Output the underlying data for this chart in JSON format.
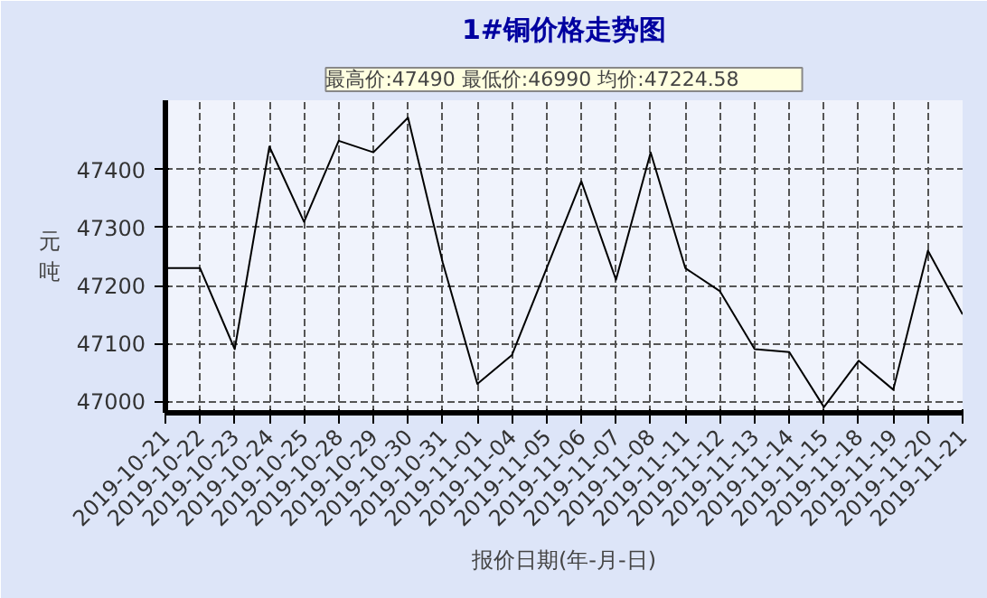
{
  "chart_data": {
    "type": "line",
    "title": "1#铜价格走势图",
    "xlabel": "报价日期(年-月-日)",
    "ylabel": "元吨",
    "categories": [
      "2019-10-21",
      "2019-10-22",
      "2019-10-23",
      "2019-10-24",
      "2019-10-25",
      "2019-10-28",
      "2019-10-29",
      "2019-10-30",
      "2019-10-31",
      "2019-11-01",
      "2019-11-04",
      "2019-11-05",
      "2019-11-06",
      "2019-11-07",
      "2019-11-08",
      "2019-11-11",
      "2019-11-12",
      "2019-11-13",
      "2019-11-14",
      "2019-11-15",
      "2019-11-18",
      "2019-11-19",
      "2019-11-20",
      "2019-11-21"
    ],
    "series": [
      {
        "color": "#000000",
        "values": [
          47230,
          47230,
          47090,
          47440,
          47310,
          47450,
          47430,
          47490,
          47240,
          47030,
          47080,
          47230,
          47380,
          47210,
          47430,
          47230,
          47190,
          47090,
          47085,
          46990,
          47070,
          47020,
          47260,
          47150
        ]
      }
    ],
    "ylim": [
      46980,
      47520
    ],
    "yticks": [
      47000,
      47100,
      47200,
      47300,
      47400
    ],
    "grid": true,
    "marker": "none",
    "line_style": "solid",
    "annotations": [
      "最高价:47490",
      "最低价:46990",
      "均价:47224.58"
    ]
  }
}
